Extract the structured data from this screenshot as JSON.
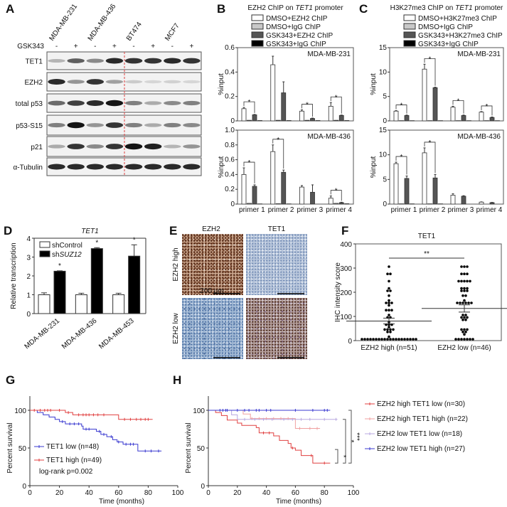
{
  "panel_labels": {
    "A": "A",
    "B": "B",
    "C": "C",
    "D": "D",
    "E": "E",
    "F": "F",
    "G": "G",
    "H": "H"
  },
  "blot": {
    "cell_lines": [
      {
        "name": "MDA-MB-231",
        "color": "#e03030"
      },
      {
        "name": "MDA-MB-436",
        "color": "#e03030"
      },
      {
        "name": "BT474",
        "color": "#2b2bc8"
      },
      {
        "name": "MCF7",
        "color": "#2b2bc8"
      }
    ],
    "treatment_label": "GSK343",
    "treatment": [
      "-",
      "+",
      "-",
      "+",
      "-",
      "+",
      "-",
      "+"
    ],
    "divider_color": "#e04040",
    "rows": [
      {
        "label": "TET1",
        "intensity": [
          0.25,
          0.65,
          0.45,
          0.9,
          0.85,
          0.85,
          0.9,
          0.85
        ]
      },
      {
        "label": "EZH2",
        "intensity": [
          0.9,
          0.4,
          0.85,
          0.35,
          0.15,
          0.1,
          0.12,
          0.1
        ]
      },
      {
        "label": "total p53",
        "intensity": [
          0.6,
          0.8,
          0.9,
          1.0,
          0.5,
          0.3,
          0.45,
          0.5
        ]
      },
      {
        "label": "p53-S15",
        "intensity": [
          0.5,
          1.0,
          0.4,
          0.85,
          0.5,
          0.3,
          0.5,
          0.45
        ]
      },
      {
        "label": "p21",
        "intensity": [
          0.3,
          0.85,
          0.45,
          0.85,
          1.0,
          0.95,
          0.25,
          0.4
        ]
      },
      {
        "label": "α-Tubulin",
        "intensity": [
          0.9,
          0.9,
          0.9,
          0.9,
          0.9,
          0.9,
          0.9,
          0.9
        ]
      }
    ]
  },
  "chart_data": [
    {
      "type": "bar",
      "panel": "B",
      "title_pre": "EZH2 ChIP on ",
      "title_gene": "TET1",
      "title_post": " promoter",
      "legend": [
        {
          "name": "DMSO+EZH2 ChIP",
          "color": "#ffffff"
        },
        {
          "name": "DMSO+IgG ChIP",
          "color": "#c8c8c8"
        },
        {
          "name": "GSK343+EZH2 ChIP",
          "color": "#555555"
        },
        {
          "name": "GSK343+IgG ChIP",
          "color": "#000000"
        }
      ],
      "categories": [
        "primer 1",
        "primer 2",
        "primer 3",
        "primer 4"
      ],
      "subplots": [
        {
          "cell_line": "MDA-MB-231",
          "ylabel": "%input",
          "ylim": [
            0,
            0.6
          ],
          "yticks": [
            "0",
            "0.2",
            "0.4",
            "0.6"
          ],
          "values": [
            [
              0.1,
              0.005,
              0.05,
              0.003
            ],
            [
              0.46,
              0.005,
              0.23,
              0.003
            ],
            [
              0.08,
              0.005,
              0.02,
              0.003
            ],
            [
              0.12,
              0.005,
              0.045,
              0.003
            ]
          ],
          "errors": [
            [
              0.01,
              0,
              0.003,
              0
            ],
            [
              0.07,
              0,
              0.09,
              0
            ],
            [
              0.01,
              0,
              0.003,
              0
            ],
            [
              0.03,
              0,
              0.003,
              0
            ]
          ],
          "significance": [
            "*",
            "",
            "*",
            "*"
          ]
        },
        {
          "cell_line": "MDA-MB-436",
          "ylabel": "%input",
          "ylim": [
            0,
            1.0
          ],
          "yticks": [
            "0",
            "0.2",
            "0.4",
            "0.6",
            "0.8",
            "1.0"
          ],
          "values": [
            [
              0.4,
              0.01,
              0.24,
              0.003
            ],
            [
              0.71,
              0.005,
              0.43,
              0.003
            ],
            [
              0.23,
              0,
              0.16,
              0
            ],
            [
              0.08,
              0.01,
              0.02,
              0.005
            ]
          ],
          "errors": [
            [
              0.09,
              0,
              0.02,
              0
            ],
            [
              0.09,
              0,
              0.03,
              0
            ],
            [
              0.02,
              0,
              0.1,
              0
            ],
            [
              0.03,
              0,
              0.005,
              0
            ]
          ],
          "significance": [
            "*",
            "*",
            "",
            "*"
          ]
        }
      ]
    },
    {
      "type": "bar",
      "panel": "C",
      "title_pre": "H3K27me3 ChIP on ",
      "title_gene": "TET1",
      "title_post": " promoter",
      "legend": [
        {
          "name": "DMSO+H3K27me3 ChIP",
          "color": "#ffffff"
        },
        {
          "name": "DMSO+IgG ChIP",
          "color": "#c8c8c8"
        },
        {
          "name": "GSK343+H3K27me3 ChIP",
          "color": "#555555"
        },
        {
          "name": "GSK343+IgG ChIP",
          "color": "#000000"
        }
      ],
      "categories": [
        "primer 1",
        "primer 2",
        "primer 3",
        "primer 4"
      ],
      "subplots": [
        {
          "cell_line": "MDA-MB-231",
          "ylabel": "%input",
          "ylim": [
            0,
            15
          ],
          "yticks": [
            "0",
            "5",
            "10",
            "15"
          ],
          "values": [
            [
              2.0,
              0.05,
              1.1,
              0.05
            ],
            [
              10.6,
              0.05,
              6.8,
              0.05
            ],
            [
              2.8,
              0.05,
              1.1,
              0.05
            ],
            [
              1.8,
              0.05,
              0.7,
              0.05
            ]
          ],
          "errors": [
            [
              0.1,
              0,
              0.1,
              0
            ],
            [
              1.0,
              0,
              0.1,
              0
            ],
            [
              0.2,
              0,
              0.1,
              0
            ],
            [
              0.1,
              0,
              0.1,
              0
            ]
          ],
          "significance": [
            "*",
            "*",
            "*",
            "*"
          ]
        },
        {
          "cell_line": "MDA-MB-436",
          "ylabel": "%input",
          "ylim": [
            0,
            15
          ],
          "yticks": [
            "0",
            "5",
            "10",
            "15"
          ],
          "values": [
            [
              8.2,
              0.05,
              5.2,
              0.05
            ],
            [
              10.4,
              0.05,
              5.3,
              0.05
            ],
            [
              1.8,
              0,
              1.6,
              0
            ],
            [
              0.4,
              0,
              0.3,
              0
            ]
          ],
          "errors": [
            [
              0.3,
              0,
              0.5,
              0
            ],
            [
              1.0,
              0,
              0.7,
              0
            ],
            [
              0.3,
              0,
              0.1,
              0
            ],
            [
              0.05,
              0,
              0.05,
              0
            ]
          ],
          "significance": [
            "*",
            "*",
            "",
            ""
          ]
        }
      ]
    },
    {
      "type": "bar",
      "panel": "D",
      "title": "TET1",
      "ylabel": "Relative transcription",
      "ylim": [
        0,
        4
      ],
      "yticks": [
        "0",
        "1",
        "2",
        "3",
        "4"
      ],
      "categories": [
        "MDA-MB-231",
        "MDA-MB-436",
        "MDA-MB-453"
      ],
      "category_color": "#e03030",
      "series": [
        {
          "name_pre": "shControl",
          "name_gene": "",
          "color": "#ffffff",
          "values": [
            1.0,
            1.0,
            1.0
          ],
          "errors": [
            0.1,
            0.08,
            0.08
          ]
        },
        {
          "name_pre": "sh",
          "name_gene": "SUZ12",
          "color": "#000000",
          "values": [
            2.25,
            3.45,
            3.05
          ],
          "errors": [
            0.02,
            0.05,
            0.6
          ]
        }
      ],
      "significance": [
        "*",
        "*",
        "*"
      ]
    },
    {
      "type": "scatter",
      "panel": "F",
      "title": "TET1",
      "ylabel": "IHC intensity score",
      "ylim": [
        0,
        400
      ],
      "yticks": [
        "0",
        "100",
        "200",
        "300",
        "400"
      ],
      "categories": [
        "EZH2 high (n=51)",
        "EZH2 low (n=46)"
      ],
      "groups": [
        {
          "mean": 81,
          "sem": 12,
          "values": [
            300,
            270,
            270,
            240,
            210,
            200,
            200,
            180,
            160,
            150,
            150,
            150,
            140,
            120,
            120,
            120,
            100,
            90,
            90,
            70,
            60,
            60,
            60,
            50,
            40,
            40,
            40,
            40,
            30,
            30,
            10,
            0,
            0,
            0,
            0,
            0,
            0,
            0,
            0,
            0,
            0,
            0,
            0,
            0,
            0,
            0,
            0,
            0,
            0,
            0,
            0
          ]
        },
        {
          "mean": 133,
          "sem": 15,
          "values": [
            300,
            300,
            300,
            270,
            270,
            270,
            240,
            240,
            240,
            240,
            240,
            210,
            210,
            210,
            200,
            200,
            200,
            180,
            180,
            160,
            150,
            150,
            150,
            150,
            150,
            150,
            100,
            100,
            90,
            90,
            90,
            80,
            80,
            40,
            40,
            40,
            30,
            30,
            20,
            0,
            0,
            0,
            0,
            0,
            0,
            0
          ]
        }
      ],
      "significance": "**"
    },
    {
      "type": "line",
      "subtype": "kaplan-meier",
      "panel": "G",
      "xlabel": "Time (months)",
      "ylabel": "Percent survival",
      "xlim": [
        0,
        100
      ],
      "ylim": [
        0,
        100
      ],
      "xticks": [
        "0",
        "20",
        "40",
        "60",
        "80",
        "100"
      ],
      "yticks": [
        "0",
        "50",
        "100"
      ],
      "series": [
        {
          "name": "TET1 low (n=48)",
          "color": "#3a3ad0",
          "steps": [
            [
              0,
              100
            ],
            [
              5,
              97
            ],
            [
              9,
              94
            ],
            [
              13,
              91
            ],
            [
              17,
              88
            ],
            [
              20,
              85
            ],
            [
              24,
              82
            ],
            [
              35,
              79
            ],
            [
              36,
              75
            ],
            [
              45,
              72
            ],
            [
              48,
              68
            ],
            [
              52,
              65
            ],
            [
              56,
              61
            ],
            [
              59,
              58
            ],
            [
              63,
              55
            ],
            [
              73,
              46
            ],
            [
              89,
              46
            ]
          ],
          "censored": [
            22,
            27,
            30,
            33,
            38,
            40,
            47,
            50,
            55,
            60,
            65,
            68,
            70,
            78,
            82,
            87
          ]
        },
        {
          "name": "TET1 high (n=49)",
          "color": "#e04040",
          "steps": [
            [
              0,
              100
            ],
            [
              24,
              97
            ],
            [
              29,
              94
            ],
            [
              60,
              88
            ],
            [
              83,
              88
            ]
          ],
          "censored": [
            3,
            7,
            10,
            12,
            14,
            20,
            26,
            33,
            36,
            38,
            40,
            43,
            46,
            50,
            64,
            68,
            72,
            75,
            78,
            80
          ]
        }
      ],
      "annotation": "log-rank p=0.002"
    },
    {
      "type": "line",
      "subtype": "kaplan-meier",
      "panel": "H",
      "xlabel": "Time (months)",
      "ylabel": "Percent survival",
      "xlim": [
        0,
        100
      ],
      "ylim": [
        0,
        100
      ],
      "xticks": [
        "0",
        "20",
        "40",
        "60",
        "80",
        "100"
      ],
      "yticks": [
        "0",
        "50",
        "100"
      ],
      "series": [
        {
          "name": "EZH2 high TET1 low (n=30)",
          "color": "#e04040",
          "steps": [
            [
              0,
              100
            ],
            [
              5,
              97
            ],
            [
              9,
              93
            ],
            [
              13,
              87
            ],
            [
              20,
              83
            ],
            [
              23,
              80
            ],
            [
              33,
              77
            ],
            [
              35,
              70
            ],
            [
              45,
              66
            ],
            [
              49,
              60
            ],
            [
              55,
              56
            ],
            [
              57,
              50
            ],
            [
              60,
              47
            ],
            [
              64,
              40
            ],
            [
              72,
              30
            ],
            [
              84,
              30
            ]
          ],
          "censored": [
            38,
            42,
            58,
            71,
            80
          ]
        },
        {
          "name": "EZH2 high TET1 high (n=22)",
          "color": "#f0a0a0",
          "steps": [
            [
              0,
              100
            ],
            [
              24,
              95
            ],
            [
              29,
              89
            ],
            [
              60,
              76
            ],
            [
              77,
              76
            ]
          ],
          "censored": [
            30,
            35,
            40,
            45,
            50,
            55,
            63,
            70,
            75
          ]
        },
        {
          "name": "EZH2 low TET1 low (n=18)",
          "color": "#b8a8e0",
          "steps": [
            [
              0,
              100
            ],
            [
              16,
              94
            ],
            [
              20,
              88
            ],
            [
              89,
              88
            ]
          ],
          "censored": [
            25,
            32,
            38,
            44,
            52,
            58,
            64,
            70,
            80,
            88
          ]
        },
        {
          "name": "EZH2 low TET1 high (n=27)",
          "color": "#3a3ad0",
          "steps": [
            [
              0,
              100
            ],
            [
              84,
              100
            ]
          ],
          "censored": [
            8,
            10,
            12,
            13,
            20,
            25,
            28,
            33,
            35,
            40,
            43,
            60,
            72,
            80,
            82
          ]
        }
      ],
      "significance": [
        "*",
        "*",
        "***"
      ]
    }
  ],
  "ihc": {
    "columns": [
      "EZH2",
      "TET1"
    ],
    "rows": [
      "EZH2 high",
      "EZH2 low"
    ],
    "scale_bar": "200 μm"
  }
}
